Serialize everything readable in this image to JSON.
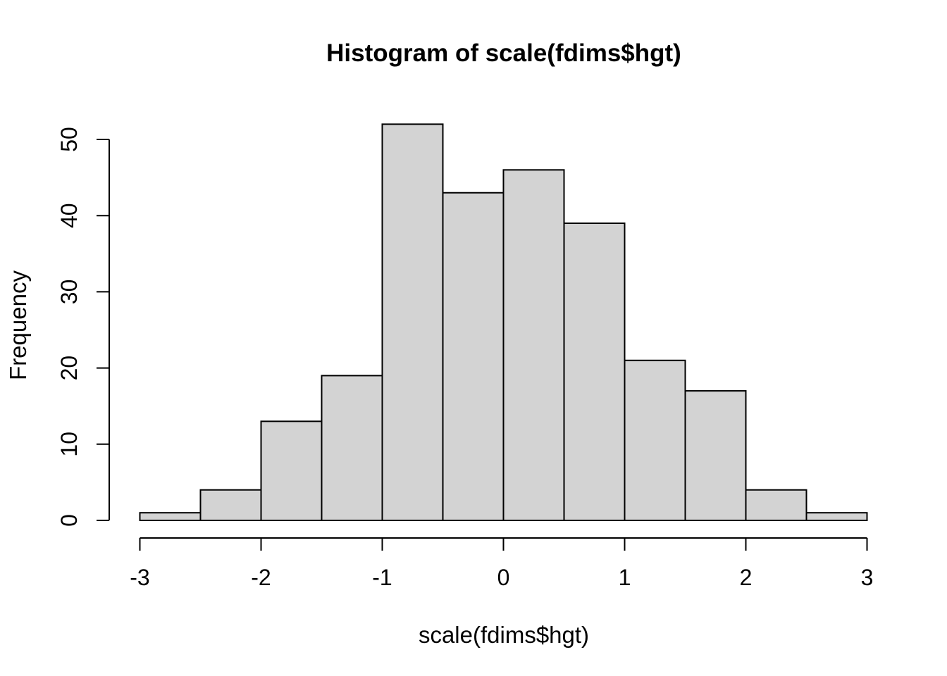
{
  "chart_data": {
    "type": "bar",
    "subtype": "histogram",
    "title": "Histogram of scale(fdims$hgt)",
    "xlabel": "scale(fdims$hgt)",
    "ylabel": "Frequency",
    "bin_edges": [
      -3,
      -2.5,
      -2,
      -1.5,
      -1,
      -0.5,
      0,
      0.5,
      1,
      1.5,
      2,
      2.5,
      3
    ],
    "counts": [
      1,
      4,
      13,
      19,
      52,
      43,
      46,
      39,
      21,
      17,
      4,
      1
    ],
    "x_ticks": [
      -3,
      -2,
      -1,
      0,
      1,
      2,
      3
    ],
    "x_tick_labels": [
      "-3",
      "-2",
      "-1",
      "0",
      "1",
      "2",
      "3"
    ],
    "y_ticks": [
      0,
      10,
      20,
      30,
      40,
      50
    ],
    "y_tick_labels": [
      "0",
      "10",
      "20",
      "30",
      "40",
      "50"
    ],
    "x_axis_range": [
      -3,
      3
    ],
    "y_axis_range": [
      0,
      50
    ],
    "grid": "off",
    "legend": "none",
    "colors": {
      "bar_fill": "#d3d3d3",
      "bar_stroke": "#000000",
      "axis": "#000000",
      "text": "#000000",
      "background": "#ffffff"
    }
  }
}
